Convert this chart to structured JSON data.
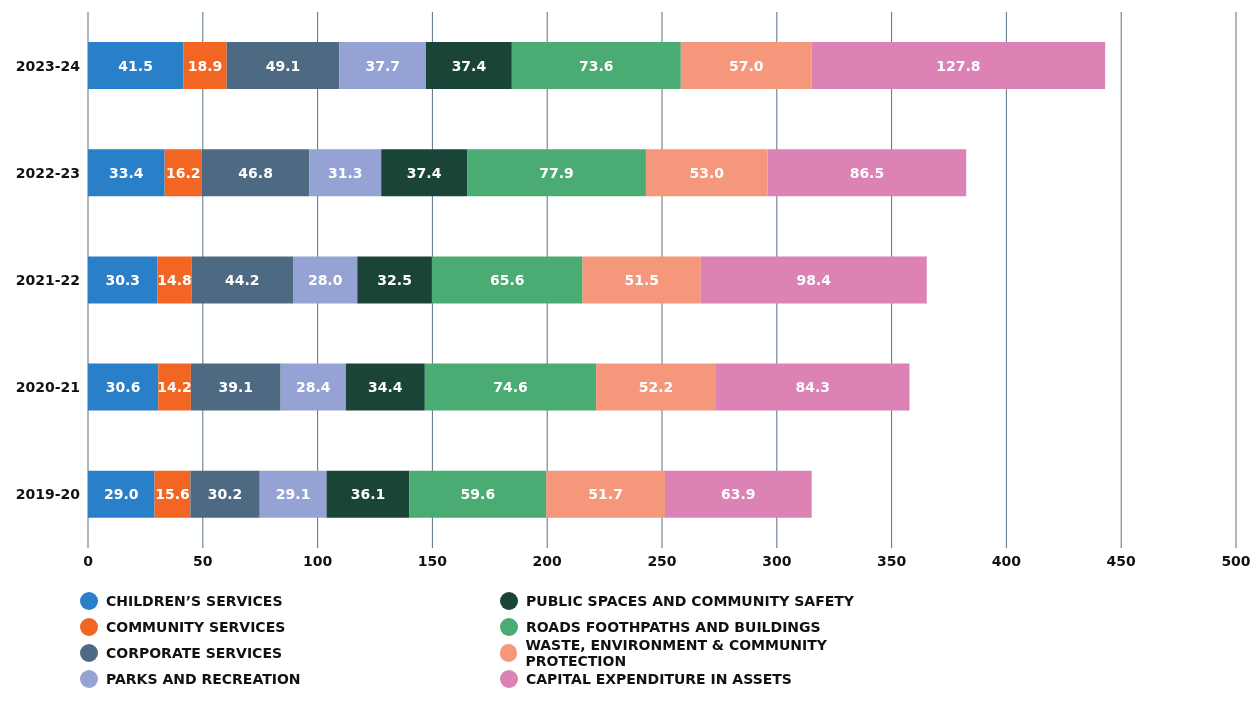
{
  "chart_data": {
    "type": "bar",
    "orientation": "horizontal",
    "stacked": true,
    "categories": [
      "2023-24",
      "2022-23",
      "2021-22",
      "2020-21",
      "2019-20"
    ],
    "series": [
      {
        "name": "CHILDREN’S SERVICES",
        "color": "#2a7fc9",
        "values": [
          41.5,
          33.4,
          30.3,
          30.6,
          29.0
        ],
        "value_labels": [
          "41.5",
          "33.4",
          "30.3",
          "30.6",
          "29.0"
        ]
      },
      {
        "name": "COMMUNITY SERVICES",
        "color": "#f26522",
        "values": [
          18.9,
          16.2,
          14.8,
          14.2,
          15.6
        ],
        "value_labels": [
          "18.9",
          "16.2",
          "14.8",
          "14.2",
          "15.6"
        ]
      },
      {
        "name": "CORPORATE SERVICES",
        "color": "#4d6a82",
        "values": [
          49.1,
          46.8,
          44.2,
          39.1,
          30.2
        ],
        "value_labels": [
          "49.1",
          "46.8",
          "44.2",
          "39.1",
          "30.2"
        ]
      },
      {
        "name": "PARKS AND RECREATION",
        "color": "#94a3d4",
        "values": [
          37.7,
          31.3,
          28.0,
          28.4,
          29.1
        ],
        "value_labels": [
          "37.7",
          "31.3",
          "28.0",
          "28.4",
          "29.1"
        ]
      },
      {
        "name": "PUBLIC SPACES AND COMMUNITY SAFETY",
        "color": "#1b4439",
        "values": [
          37.4,
          37.4,
          32.5,
          34.4,
          36.1
        ],
        "value_labels": [
          "37.4",
          "37.4",
          "32.5",
          "34.4",
          "36.1"
        ]
      },
      {
        "name": "ROADS FOOTHPATHS AND BUILDINGS",
        "color": "#4aab73",
        "values": [
          73.6,
          77.9,
          65.6,
          74.6,
          59.6
        ],
        "value_labels": [
          "73.6",
          "77.9",
          "65.6",
          "74.6",
          "59.6"
        ]
      },
      {
        "name": "WASTE, ENVIRONMENT & COMMUNITY PROTECTION",
        "color": "#f5977a",
        "values": [
          57.0,
          53.0,
          51.5,
          52.2,
          51.7
        ],
        "value_labels": [
          "57.0",
          "53.0",
          "51.5",
          "52.2",
          "51.7"
        ]
      },
      {
        "name": "CAPITAL EXPENDITURE IN ASSETS",
        "color": "#dc82b4",
        "values": [
          127.8,
          86.5,
          98.4,
          84.3,
          63.9
        ],
        "value_labels": [
          "127.8",
          "86.5",
          "98.4",
          "84.3",
          "63.9"
        ]
      }
    ],
    "xlim": [
      0,
      500
    ],
    "xticks": [
      0,
      50,
      100,
      150,
      200,
      250,
      300,
      350,
      400,
      450,
      500
    ],
    "grid": "x",
    "legend": "bottom"
  }
}
